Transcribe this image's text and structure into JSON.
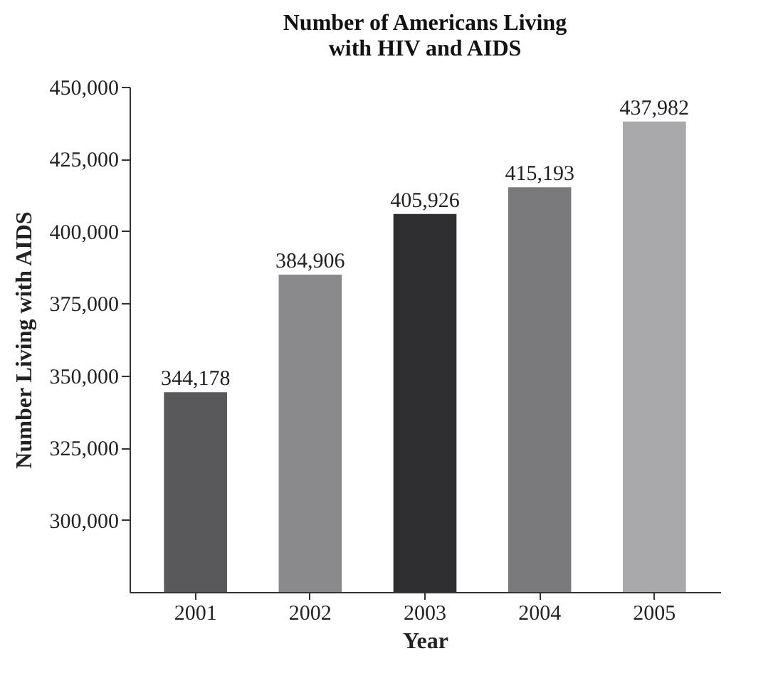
{
  "chart_data": {
    "type": "bar",
    "title": "Number of Americans Living\nwith HIV and AIDS",
    "xlabel": "Year",
    "ylabel": "Number Living with AIDS",
    "categories": [
      "2001",
      "2002",
      "2003",
      "2004",
      "2005"
    ],
    "values": [
      344178,
      384906,
      405926,
      415193,
      437982
    ],
    "colors": [
      "#59585a",
      "#8a898b",
      "#2f2e31",
      "#7a797b",
      "#a9a8aa"
    ],
    "ylim": [
      275000,
      450000
    ],
    "yticks": [
      {
        "value": 300000,
        "label": "300,000"
      },
      {
        "value": 325000,
        "label": "325,000"
      },
      {
        "value": 350000,
        "label": "350,000"
      },
      {
        "value": 375000,
        "label": "375,000"
      },
      {
        "value": 400000,
        "label": "400,000"
      },
      {
        "value": 425000,
        "label": "425,000"
      },
      {
        "value": 450000,
        "label": "450,000"
      }
    ],
    "value_labels": [
      "344,178",
      "384,906",
      "405,926",
      "415,193",
      "437,982"
    ],
    "grid": false,
    "legend": false
  }
}
